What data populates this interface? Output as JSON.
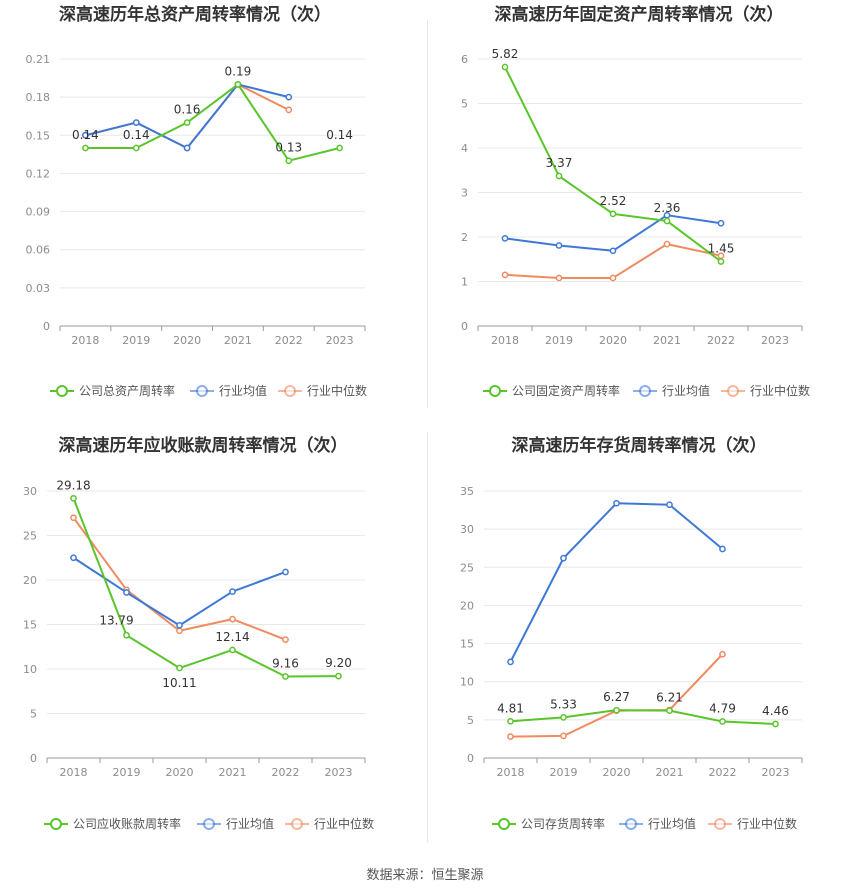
{
  "source": "数据来源：恒生聚源",
  "colors": {
    "company": "#5ac52a",
    "avg": "#3e79d6",
    "median": "#f08a60"
  },
  "chart_data": [
    {
      "type": "line",
      "title": "深高速历年总资产周转率情况（次）",
      "categories": [
        "2018",
        "2019",
        "2020",
        "2021",
        "2022",
        "2023"
      ],
      "ylim": [
        0,
        0.21
      ],
      "yticks": [
        0,
        0.03,
        0.06,
        0.09,
        0.12,
        0.15,
        0.18,
        0.21
      ],
      "yticklabels": [
        "0",
        "0.03",
        "0.06",
        "0.09",
        "0.12",
        "0.15",
        "0.18",
        "0.21"
      ],
      "legend": "bottom",
      "series": [
        {
          "name": "公司总资产周转率",
          "key": "company",
          "values": [
            0.14,
            0.14,
            0.16,
            0.19,
            0.13,
            0.14
          ],
          "labels": [
            "0.14",
            "0.14",
            "0.16",
            "0.19",
            "0.13",
            "0.14"
          ]
        },
        {
          "name": "行业均值",
          "key": "avg",
          "values": [
            0.15,
            0.16,
            0.14,
            0.19,
            0.18,
            null
          ]
        },
        {
          "name": "行业中位数",
          "key": "median",
          "values": [
            0.15,
            0.16,
            0.14,
            0.19,
            0.17,
            null
          ]
        }
      ]
    },
    {
      "type": "line",
      "title": "深高速历年固定资产周转率情况（次）",
      "categories": [
        "2018",
        "2019",
        "2020",
        "2021",
        "2022",
        "2023"
      ],
      "ylim": [
        0,
        6
      ],
      "yticks": [
        0,
        1,
        2,
        3,
        4,
        5,
        6
      ],
      "yticklabels": [
        "0",
        "1",
        "2",
        "3",
        "4",
        "5",
        "6"
      ],
      "legend": "bottom",
      "series": [
        {
          "name": "公司固定资产周转率",
          "key": "company",
          "values": [
            5.82,
            3.37,
            2.52,
            2.36,
            1.45,
            null
          ],
          "labels": [
            "5.82",
            "3.37",
            "2.52",
            "2.36",
            "1.45",
            null
          ]
        },
        {
          "name": "行业均值",
          "key": "avg",
          "values": [
            1.97,
            1.81,
            1.69,
            2.49,
            2.31,
            null
          ]
        },
        {
          "name": "行业中位数",
          "key": "median",
          "values": [
            1.15,
            1.08,
            1.08,
            1.84,
            1.58,
            null
          ]
        }
      ]
    },
    {
      "type": "line",
      "title": "深高速历年应收账款周转率情况（次）",
      "categories": [
        "2018",
        "2019",
        "2020",
        "2021",
        "2022",
        "2023"
      ],
      "ylim": [
        0,
        30
      ],
      "yticks": [
        0,
        5,
        10,
        15,
        20,
        25,
        30
      ],
      "yticklabels": [
        "0",
        "5",
        "10",
        "15",
        "20",
        "25",
        "30"
      ],
      "legend": "bottom",
      "series": [
        {
          "name": "公司应收账款周转率",
          "key": "company",
          "values": [
            29.18,
            13.79,
            10.11,
            12.14,
            9.16,
            9.2
          ],
          "labels": [
            "29.18",
            "13.79",
            "10.11",
            "12.14",
            "9.16",
            "9.20"
          ]
        },
        {
          "name": "行业均值",
          "key": "avg",
          "values": [
            22.5,
            18.6,
            14.9,
            18.7,
            20.9,
            null
          ]
        },
        {
          "name": "行业中位数",
          "key": "median",
          "values": [
            27.0,
            18.9,
            14.3,
            15.6,
            13.3,
            null
          ]
        }
      ]
    },
    {
      "type": "line",
      "title": "深高速历年存货周转率情况（次）",
      "categories": [
        "2018",
        "2019",
        "2020",
        "2021",
        "2022",
        "2023"
      ],
      "ylim": [
        0,
        35
      ],
      "yticks": [
        0,
        5,
        10,
        15,
        20,
        25,
        30,
        35
      ],
      "yticklabels": [
        "0",
        "5",
        "10",
        "15",
        "20",
        "25",
        "30",
        "35"
      ],
      "legend": "bottom",
      "series": [
        {
          "name": "公司存货周转率",
          "key": "company",
          "values": [
            4.81,
            5.33,
            6.27,
            6.21,
            4.79,
            4.46
          ],
          "labels": [
            "4.81",
            "5.33",
            "6.27",
            "6.21",
            "4.79",
            "4.46"
          ]
        },
        {
          "name": "行业均值",
          "key": "avg",
          "values": [
            12.6,
            26.2,
            33.4,
            33.2,
            27.4,
            null
          ]
        },
        {
          "name": "行业中位数",
          "key": "median",
          "values": [
            2.8,
            2.9,
            6.2,
            6.3,
            13.6,
            null
          ]
        }
      ]
    }
  ]
}
